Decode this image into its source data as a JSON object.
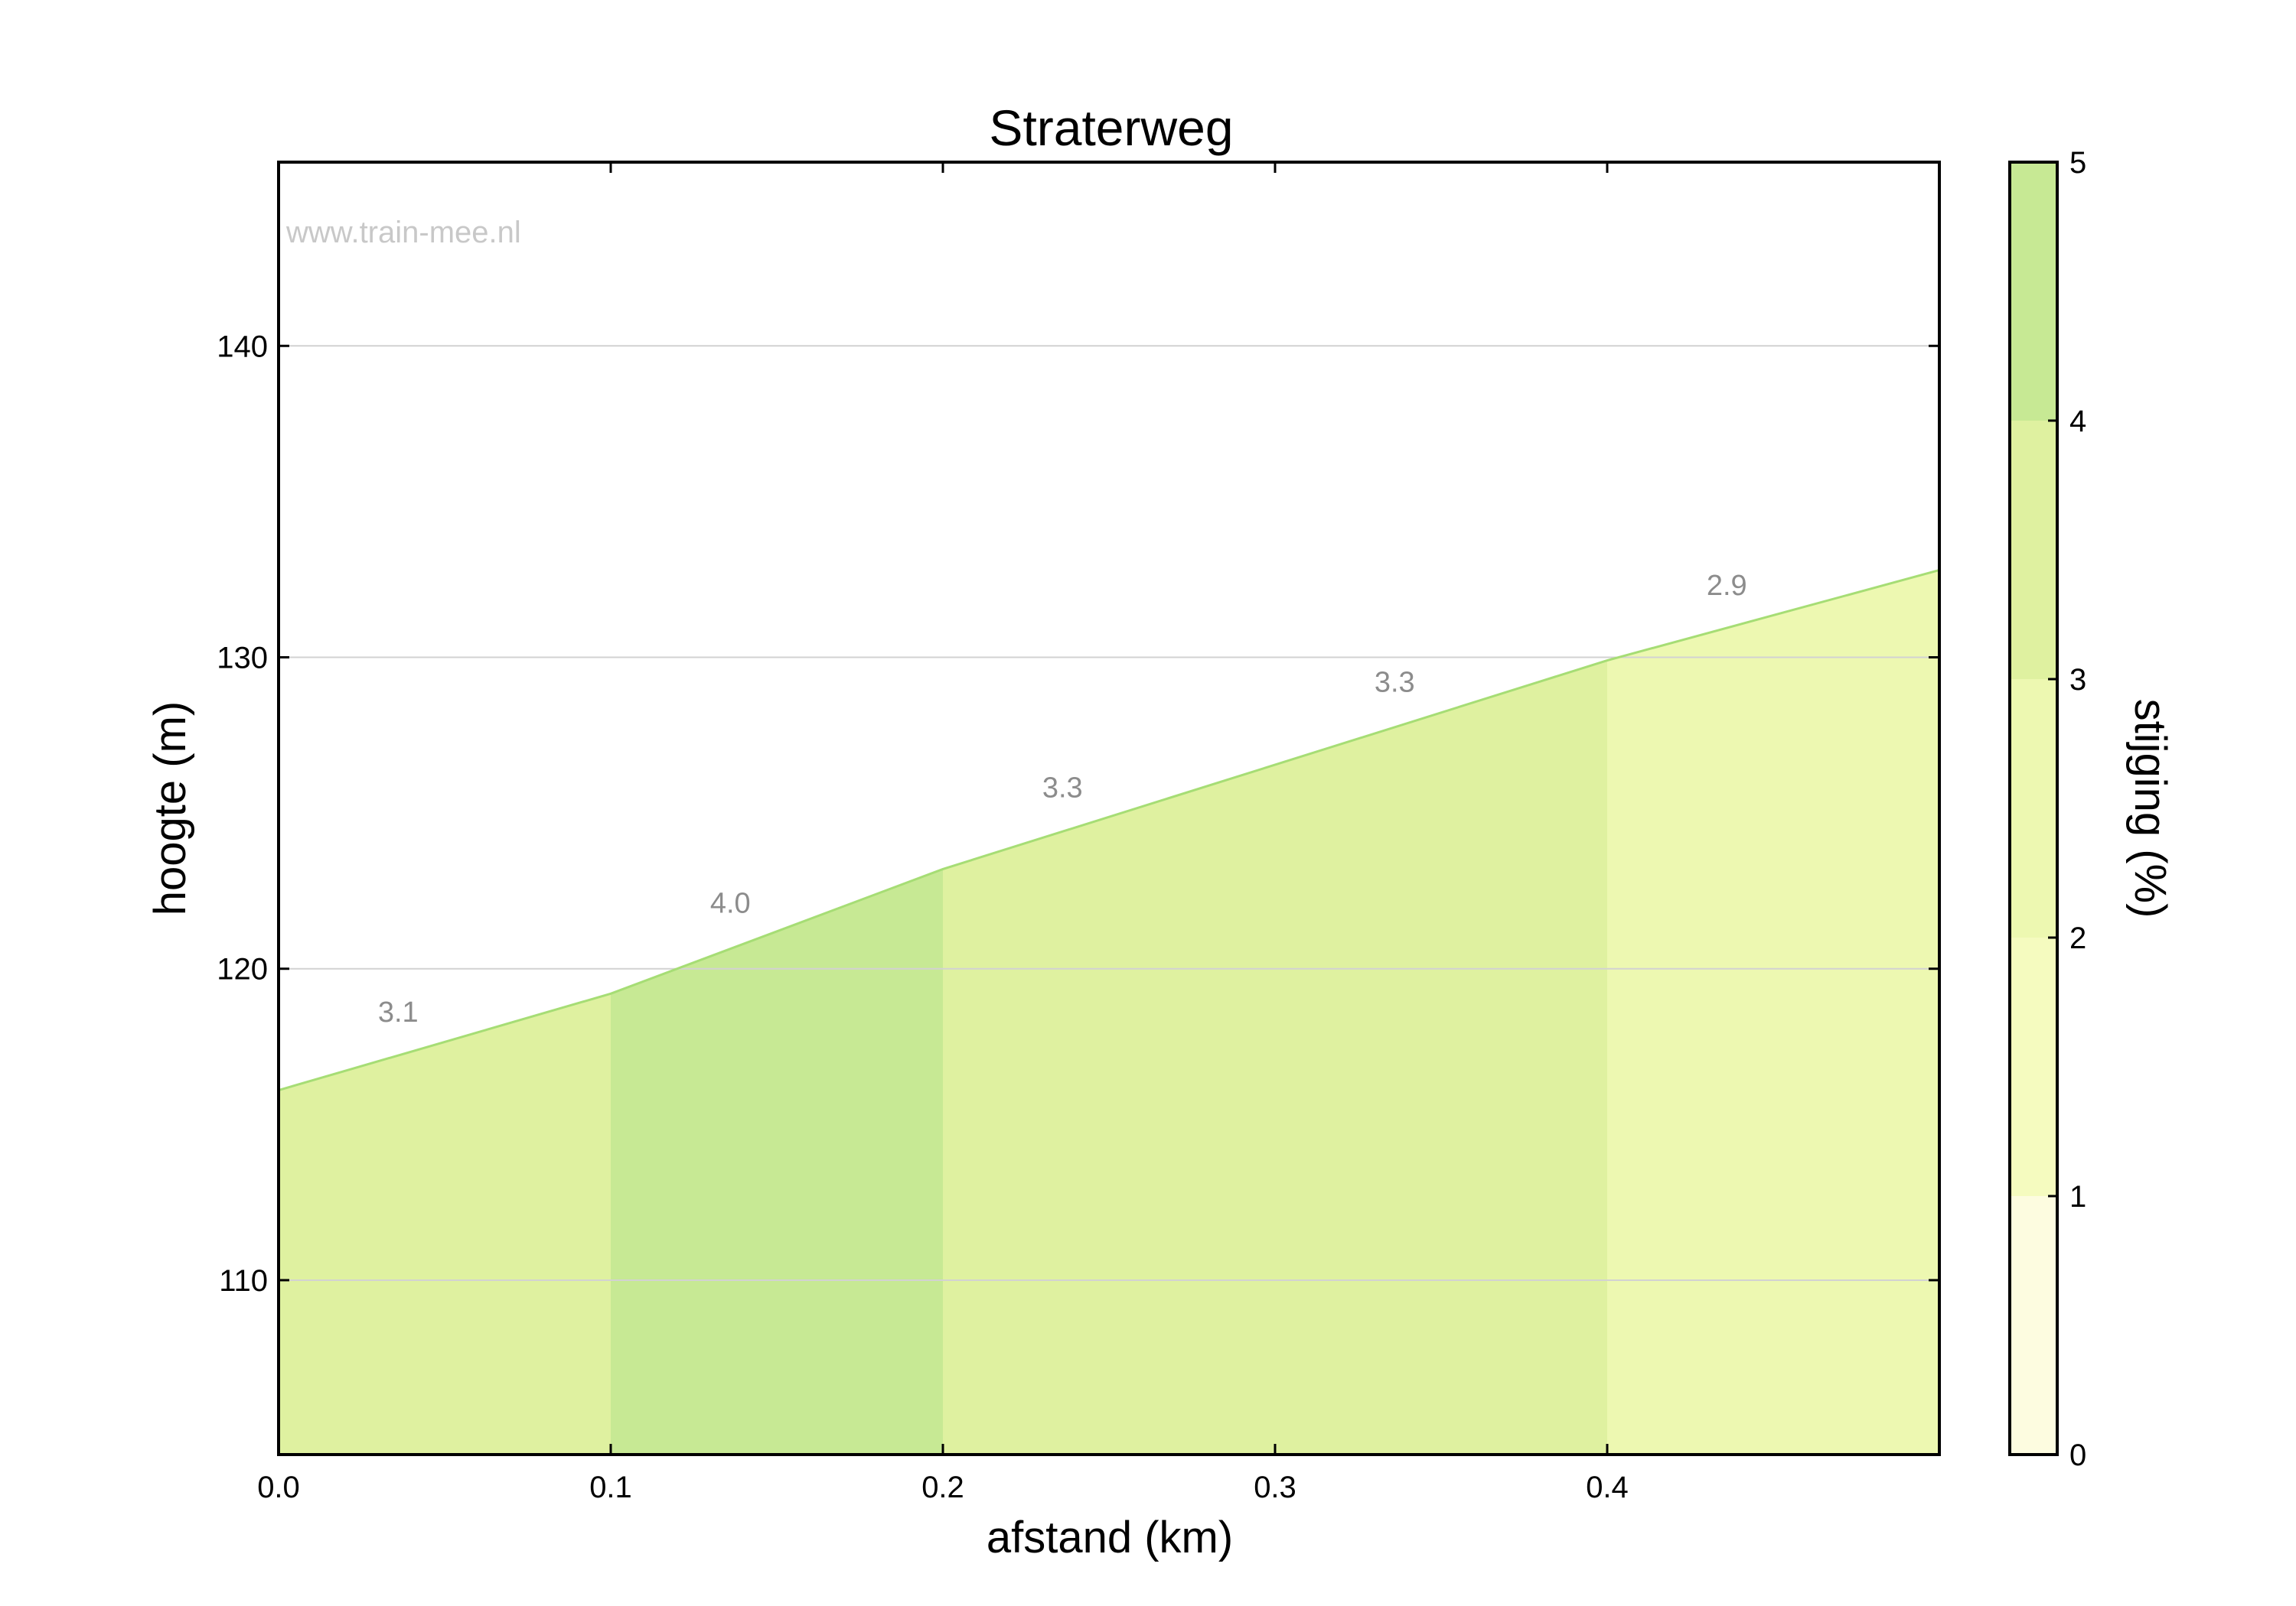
{
  "chart_data": {
    "type": "area",
    "title": "Straterweg",
    "xlabel": "afstand (km)",
    "ylabel": "hoogte (m)",
    "watermark": "www.train-mee.nl",
    "xlim": [
      0.0,
      0.5
    ],
    "ylim": [
      104.4,
      145.9
    ],
    "x_ticks": [
      0.0,
      0.1,
      0.2,
      0.3,
      0.4
    ],
    "x_tick_labels": [
      "0.0",
      "0.1",
      "0.2",
      "0.3",
      "0.4"
    ],
    "y_ticks": [
      110,
      120,
      130,
      140
    ],
    "y_tick_labels": [
      "110",
      "120",
      "130",
      "140"
    ],
    "grid": "horizontal",
    "profile": [
      {
        "x": 0.0,
        "y": 116.1
      },
      {
        "x": 0.1,
        "y": 119.2
      },
      {
        "x": 0.2,
        "y": 123.2
      },
      {
        "x": 0.4,
        "y": 129.9
      },
      {
        "x": 0.5,
        "y": 132.8
      }
    ],
    "segments": [
      {
        "x0": 0.0,
        "x1": 0.1,
        "gradient": 3.1,
        "label": "3.1",
        "label_x": 0.036,
        "label_y": 118.3
      },
      {
        "x0": 0.1,
        "x1": 0.2,
        "gradient": 4.0,
        "label": "4.0",
        "label_x": 0.136,
        "label_y": 121.8
      },
      {
        "x0": 0.2,
        "x1": 0.4,
        "gradient": 3.3,
        "label": "3.3",
        "label_x": 0.236,
        "label_y": 125.5
      },
      {
        "x0": 0.2,
        "x1": 0.4,
        "gradient": 3.3,
        "label": "3.3",
        "label_x": 0.336,
        "label_y": 128.9
      },
      {
        "x0": 0.4,
        "x1": 0.5,
        "gradient": 2.9,
        "label": "2.9",
        "label_x": 0.436,
        "label_y": 132.0
      }
    ],
    "colorbar": {
      "label": "stijging (%)",
      "min": 0,
      "max": 5,
      "ticks": [
        0,
        1,
        2,
        3,
        4,
        5
      ],
      "tick_labels": [
        "0",
        "1",
        "2",
        "3",
        "4",
        "5"
      ],
      "bands": [
        {
          "from": 0,
          "to": 1,
          "color": "#fdfce0"
        },
        {
          "from": 1,
          "to": 2,
          "color": "#f5fbbf"
        },
        {
          "from": 2,
          "to": 3,
          "color": "#edf8b1"
        },
        {
          "from": 3,
          "to": 4,
          "color": "#dff1a0"
        },
        {
          "from": 4,
          "to": 5,
          "color": "#c7e994"
        }
      ]
    },
    "line_color": "#a6dd75"
  }
}
